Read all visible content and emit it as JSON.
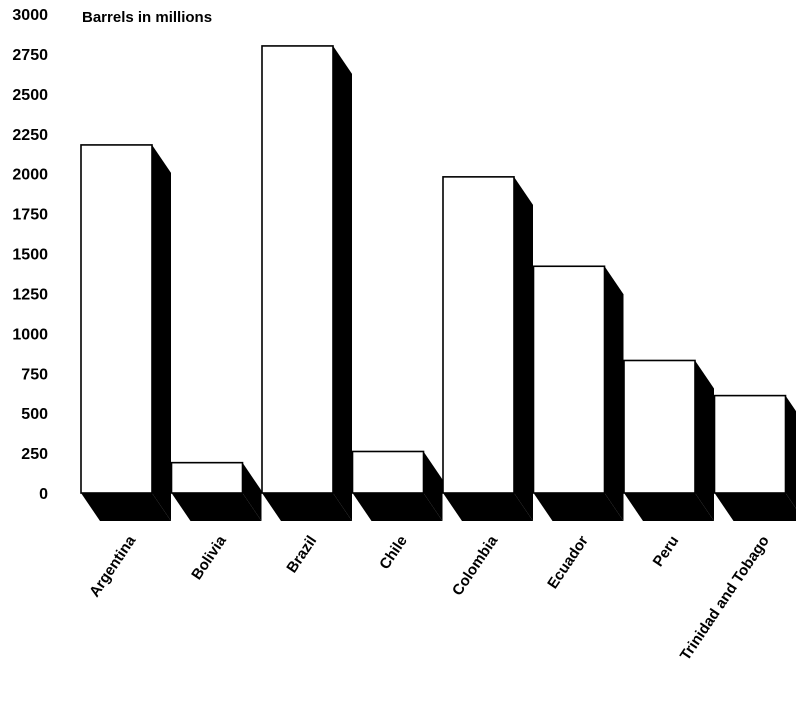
{
  "chart_data": {
    "type": "bar",
    "ylabel": "Barrels in millions",
    "categories": [
      "Argentina",
      "Bolivia",
      "Brazil",
      "Chile",
      "Colombia",
      "Ecuador",
      "Peru",
      "Trinidad and Tobago"
    ],
    "values": [
      2180,
      190,
      2800,
      260,
      1980,
      1420,
      830,
      610
    ],
    "ylim": [
      0,
      3000
    ],
    "yticks": [
      "0",
      "250",
      "500",
      "750",
      "1000",
      "1250",
      "1500",
      "1750",
      "2000",
      "2250",
      "2500",
      "2750",
      "3000"
    ],
    "grid": false,
    "legend": "none",
    "style": "3d-shadow",
    "colors": {
      "bar_face": "#ffffff",
      "bar_outline": "#000000",
      "shadow": "#000000"
    }
  }
}
